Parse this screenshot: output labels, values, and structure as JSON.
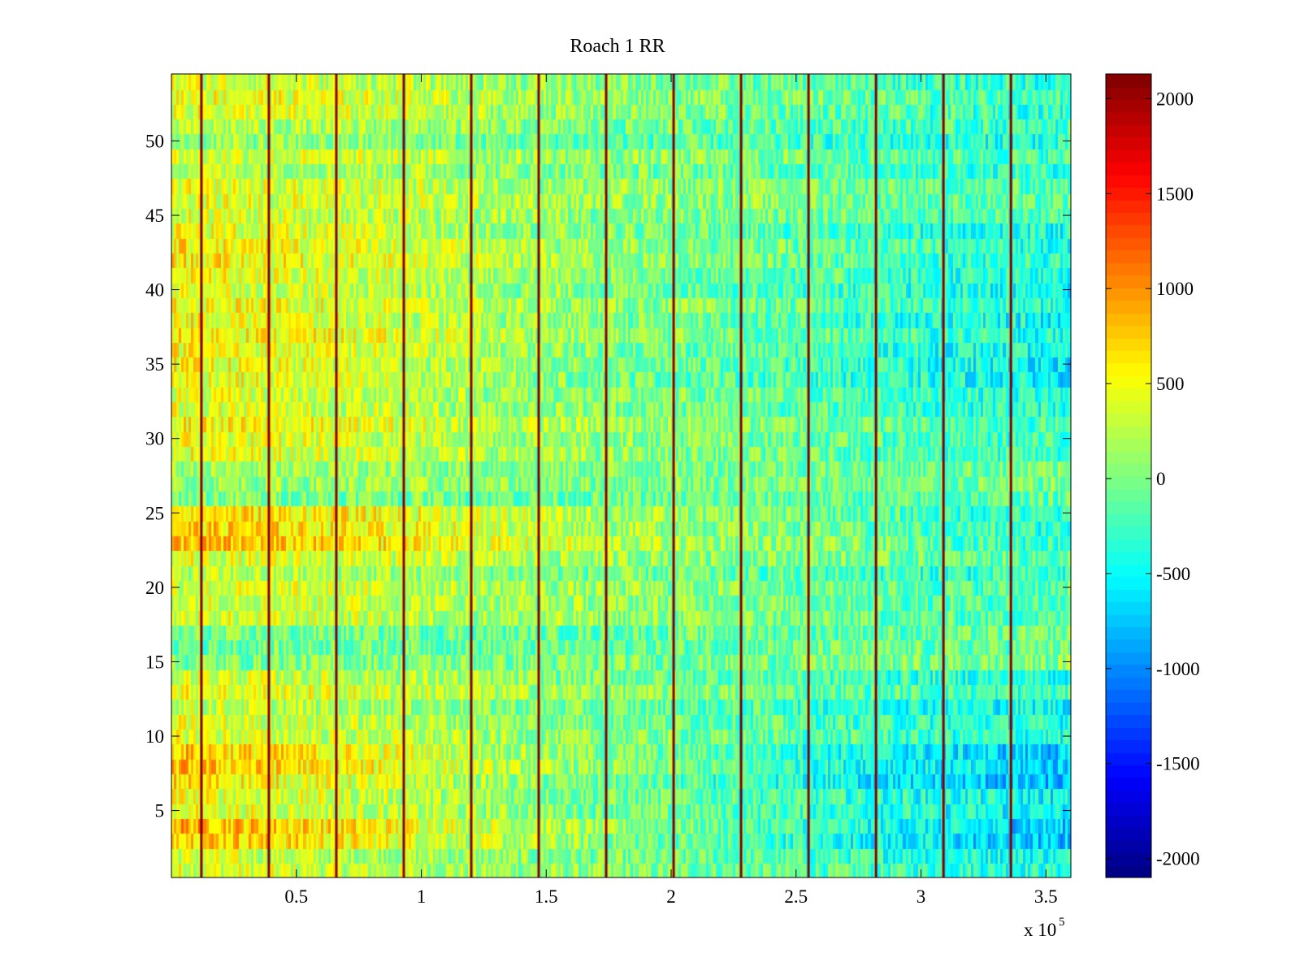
{
  "chart_data": {
    "type": "heatmap",
    "title": "Roach 1 RR",
    "xlabel": "",
    "ylabel": "",
    "colormap": "jet",
    "x_range": [
      0,
      3.6
    ],
    "x_multiplier_label": "x 10",
    "x_multiplier_exponent": "5",
    "x_ticks": [
      0.5,
      1,
      1.5,
      2,
      2.5,
      3,
      3.5
    ],
    "x_tick_labels": [
      "0.5",
      "1",
      "1.5",
      "2",
      "2.5",
      "3",
      "3.5"
    ],
    "y_range": [
      0.5,
      54.5
    ],
    "y_ticks": [
      5,
      10,
      15,
      20,
      25,
      30,
      35,
      40,
      45,
      50
    ],
    "y_tick_labels": [
      "5",
      "10",
      "15",
      "20",
      "25",
      "30",
      "35",
      "40",
      "45",
      "50"
    ],
    "color_range": [
      -2100,
      2130
    ],
    "colorbar_ticks": [
      2000,
      1500,
      1000,
      500,
      0,
      -500,
      -1000,
      -1500,
      -2000
    ],
    "colorbar_tick_labels": [
      "2000",
      "1500",
      "1000",
      "500",
      "0",
      "-500",
      "-1000",
      "-1500",
      "-2000"
    ],
    "vertical_stripes_x": [
      0.12,
      0.39,
      0.66,
      0.93,
      1.2,
      1.47,
      1.74,
      2.01,
      2.28,
      2.55,
      2.82,
      3.09,
      3.36
    ],
    "stripe_value": 2050,
    "rows": 54,
    "cols": 360,
    "column_trend": [
      {
        "x": 0.0,
        "value": 520
      },
      {
        "x": 0.5,
        "value": 430
      },
      {
        "x": 0.95,
        "value": 350
      },
      {
        "x": 1.3,
        "value": 180
      },
      {
        "x": 1.7,
        "value": 60
      },
      {
        "x": 2.2,
        "value": -30
      },
      {
        "x": 2.6,
        "value": -150
      },
      {
        "x": 3.0,
        "value": -300
      },
      {
        "x": 3.6,
        "value": -350
      }
    ],
    "row_groups": [
      {
        "rows": [
          1,
          2
        ],
        "left": 250,
        "right": -400
      },
      {
        "rows": [
          3,
          4
        ],
        "left": 1050,
        "right": -1200
      },
      {
        "rows": [
          5,
          6
        ],
        "left": 350,
        "right": -700
      },
      {
        "rows": [
          7,
          9
        ],
        "left": 900,
        "right": -1150
      },
      {
        "rows": [
          10,
          12
        ],
        "left": 200,
        "right": -500
      },
      {
        "rows": [
          13,
          14
        ],
        "left": 350,
        "right": -300
      },
      {
        "rows": [
          15,
          17
        ],
        "left": -500,
        "right": 300
      },
      {
        "rows": [
          18,
          21
        ],
        "left": 150,
        "right": -150
      },
      {
        "rows": [
          22,
          22
        ],
        "left": 300,
        "right": 100
      },
      {
        "rows": [
          23,
          25
        ],
        "left": 950,
        "right": -250
      },
      {
        "rows": [
          26,
          28
        ],
        "left": -400,
        "right": 100
      },
      {
        "rows": [
          29,
          33
        ],
        "left": 450,
        "right": -200
      },
      {
        "rows": [
          34,
          38
        ],
        "left": 550,
        "right": -600
      },
      {
        "rows": [
          39,
          44
        ],
        "left": 500,
        "right": -450
      },
      {
        "rows": [
          45,
          49
        ],
        "left": 250,
        "right": -100
      },
      {
        "rows": [
          50,
          51
        ],
        "left": -100,
        "right": -250
      },
      {
        "rows": [
          52,
          54
        ],
        "left": 400,
        "right": -200
      }
    ],
    "noise_amplitude": 380
  }
}
